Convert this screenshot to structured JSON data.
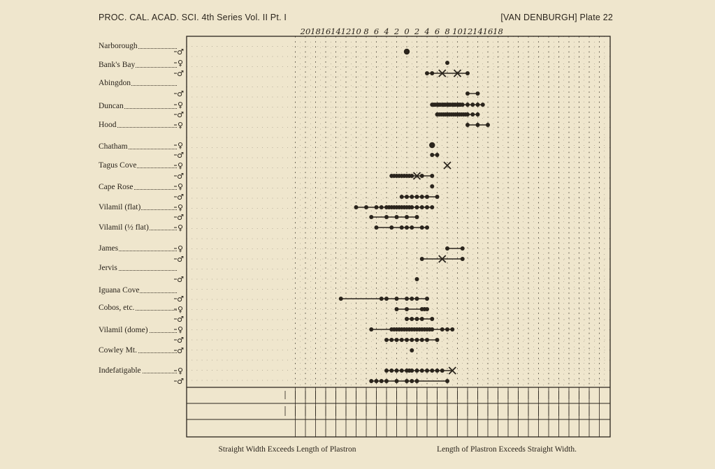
{
  "header": {
    "left": "PROC. CAL. ACAD. SCI. 4th Series Vol. II Pt. I",
    "right": "[VAN DENBURGH] Plate 22"
  },
  "captions": {
    "left": "Straight Width Exceeds Length of Plastron",
    "right": "Length of Plastron Exceeds Straight Width."
  },
  "chart_data": {
    "type": "scatter",
    "title": "",
    "xlabel": "",
    "ylabel": "",
    "x_ticks": [
      "20",
      "18",
      "16",
      "14",
      "12",
      "10",
      "8",
      "6",
      "4",
      "2",
      "0",
      "2",
      "4",
      "6",
      "8",
      "10",
      "12",
      "14",
      "16",
      "18"
    ],
    "tick_values": [
      -20,
      -18,
      -16,
      -14,
      -12,
      -10,
      -8,
      -6,
      -4,
      -2,
      0,
      2,
      4,
      6,
      8,
      10,
      12,
      14,
      16,
      18
    ],
    "xlim": [
      -20,
      20
    ],
    "grid": true,
    "groups": [
      {
        "label": "Narborough",
        "rows": [
          {
            "sex": "♂",
            "points": [
              0
            ],
            "big": [
              0
            ]
          }
        ]
      },
      {
        "label": "Bank's Bay",
        "rows": [
          {
            "sex": "♀",
            "points": [
              8
            ]
          },
          {
            "sex": "♂",
            "points": [
              4,
              5,
              7,
              10,
              12
            ],
            "cross": [
              7,
              10
            ]
          }
        ]
      },
      {
        "label": "Abingdon",
        "rows": [
          {
            "sex": "♂",
            "points": [
              12,
              14
            ]
          }
        ]
      },
      {
        "label": "Duncan",
        "rows": [
          {
            "sex": "♀",
            "points": [
              5,
              5.3,
              5.6,
              6,
              6.3,
              6.6,
              7,
              7.3,
              7.6,
              8,
              8.3,
              8.6,
              9,
              9.3,
              9.6,
              10,
              10.3,
              10.6,
              11,
              12,
              13,
              14,
              15
            ]
          },
          {
            "sex": "♂",
            "points": [
              6,
              6.4,
              6.8,
              7.2,
              7.6,
              8,
              8.4,
              8.8,
              9.2,
              9.6,
              10,
              10.4,
              10.8,
              11.2,
              11.6,
              12,
              13,
              14
            ]
          }
        ]
      },
      {
        "label": "Hood",
        "rows": [
          {
            "sex": "♀",
            "points": [
              12,
              14,
              16
            ]
          }
        ]
      },
      {
        "label": "Chatham",
        "rows": [
          {
            "sex": "♀",
            "points": [
              5
            ],
            "big": [
              5
            ]
          },
          {
            "sex": "♂",
            "points": [
              5,
              6
            ]
          }
        ]
      },
      {
        "label": "Tagus Cove",
        "rows": [
          {
            "sex": "♀",
            "points": [
              8
            ],
            "cross": [
              8
            ]
          },
          {
            "sex": "♂",
            "points": [
              -3,
              -2.5,
              -2,
              -1.5,
              -1,
              -0.5,
              0,
              0.5,
              1,
              2,
              3,
              5
            ],
            "cross": [
              2
            ]
          }
        ]
      },
      {
        "label": "Cape Rose",
        "rows": [
          {
            "sex": "♀",
            "points": [
              5
            ]
          },
          {
            "sex": "♂",
            "points": [
              -1,
              0,
              1,
              2,
              3,
              4,
              6
            ]
          }
        ]
      },
      {
        "label": "Vilamil (flat)",
        "rows": [
          {
            "sex": "♀",
            "points": [
              -10,
              -8,
              -6,
              -5,
              -4,
              -3.5,
              -3,
              -2.5,
              -2,
              -1.5,
              -1,
              -0.5,
              0,
              0.5,
              1,
              2,
              3,
              4,
              5
            ]
          },
          {
            "sex": "♂",
            "points": [
              -7,
              -4,
              -2,
              0,
              2
            ]
          }
        ]
      },
      {
        "label": "Vilamil (½ flat)",
        "rows": [
          {
            "sex": "♀",
            "points": [
              -6,
              -3,
              -1,
              0,
              1,
              3,
              4
            ]
          }
        ]
      },
      {
        "label": "James",
        "rows": [
          {
            "sex": "♀",
            "points": [
              8,
              11
            ]
          },
          {
            "sex": "♂",
            "points": [
              3,
              7,
              11
            ],
            "cross": [
              7
            ]
          }
        ]
      },
      {
        "label": "Jervis",
        "rows": [
          {
            "sex": "♂",
            "points": [
              2
            ]
          }
        ]
      },
      {
        "label": "Iguana Cove",
        "rows": [
          {
            "sex": "♂",
            "points": [
              -13,
              -5,
              -4,
              -2,
              0,
              1,
              2,
              4
            ]
          }
        ]
      },
      {
        "label": "Cobos, etc.",
        "rows": [
          {
            "sex": "♀",
            "points": [
              -2,
              0,
              3,
              3.5,
              4
            ]
          },
          {
            "sex": "♂",
            "points": [
              0,
              1,
              2,
              3,
              5
            ]
          }
        ]
      },
      {
        "label": "Vilamil (dome)",
        "rows": [
          {
            "sex": "♀",
            "points": [
              -7,
              -3,
              -2.5,
              -2,
              -1.5,
              -1,
              -0.5,
              0,
              0.5,
              1,
              1.5,
              2,
              2.5,
              3,
              3.5,
              4,
              4.5,
              5,
              7,
              8,
              9
            ]
          },
          {
            "sex": "♂",
            "points": [
              -4,
              -3,
              -2,
              -1,
              0,
              1,
              2,
              3,
              4,
              6
            ]
          }
        ]
      },
      {
        "label": "Cowley Mt.",
        "rows": [
          {
            "sex": "♂",
            "points": [
              1
            ]
          }
        ]
      },
      {
        "label": "Indefatigable",
        "rows": [
          {
            "sex": "♀",
            "points": [
              -4,
              -3,
              -2,
              -1,
              0,
              0.5,
              1,
              2,
              3,
              4,
              5,
              6,
              7,
              9
            ],
            "cross": [
              9
            ]
          },
          {
            "sex": "♂",
            "points": [
              -7,
              -6,
              -5,
              -4,
              -2,
              0,
              1,
              2,
              8
            ]
          }
        ]
      }
    ]
  }
}
